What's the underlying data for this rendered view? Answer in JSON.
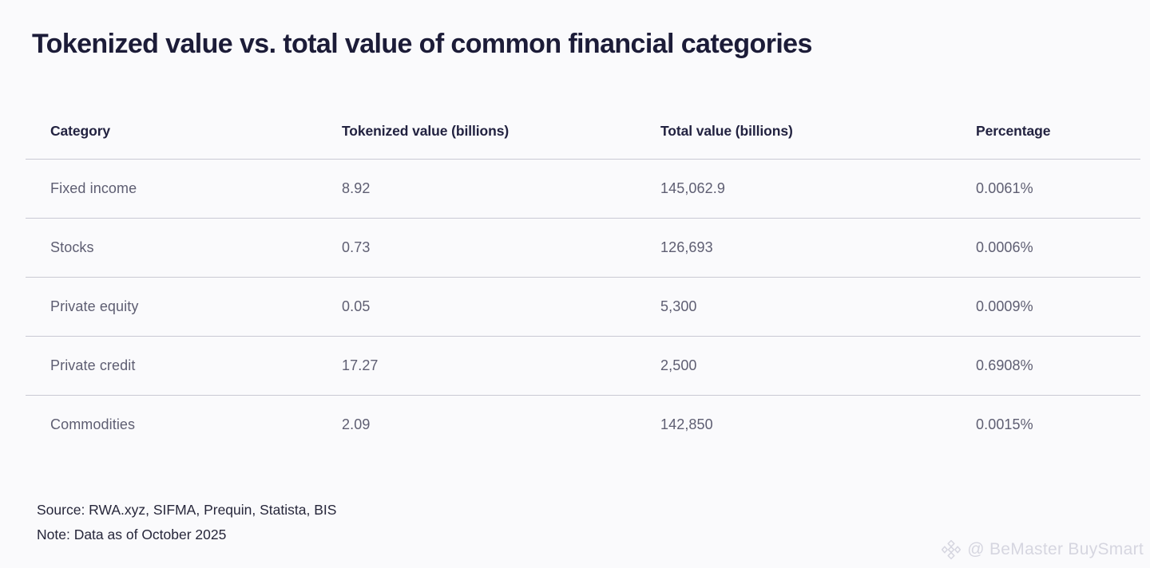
{
  "title": "Tokenized value vs. total value of common financial categories",
  "table": {
    "columns": [
      {
        "key": "category",
        "label": "Category"
      },
      {
        "key": "tokenized",
        "label": "Tokenized value (billions)"
      },
      {
        "key": "total",
        "label": "Total value (billions)"
      },
      {
        "key": "percentage",
        "label": "Percentage"
      }
    ],
    "rows": [
      {
        "category": "Fixed income",
        "tokenized": "8.92",
        "total": "145,062.9",
        "percentage": "0.0061%"
      },
      {
        "category": "Stocks",
        "tokenized": "0.73",
        "total": "126,693",
        "percentage": "0.0006%"
      },
      {
        "category": "Private equity",
        "tokenized": "0.05",
        "total": "5,300",
        "percentage": "0.0009%"
      },
      {
        "category": "Private credit",
        "tokenized": "17.27",
        "total": "2,500",
        "percentage": "0.6908%"
      },
      {
        "category": "Commodities",
        "tokenized": "2.09",
        "total": "142,850",
        "percentage": "0.0015%"
      }
    ]
  },
  "footer": {
    "source": "Source: RWA.xyz, SIFMA, Prequin, Statista, BIS",
    "note": "Note: Data as of October 2025"
  },
  "watermark": {
    "icon": "binance-diamond-icon",
    "label": "@ BeMaster BuySmart"
  },
  "colors": {
    "background": "#fafafc",
    "title_text": "#1c1c38",
    "header_text": "#222240",
    "row_text": "#5e5e72",
    "divider": "#c9c9d4",
    "footer_text": "#26263a",
    "watermark_text": "#d6d6e0"
  }
}
